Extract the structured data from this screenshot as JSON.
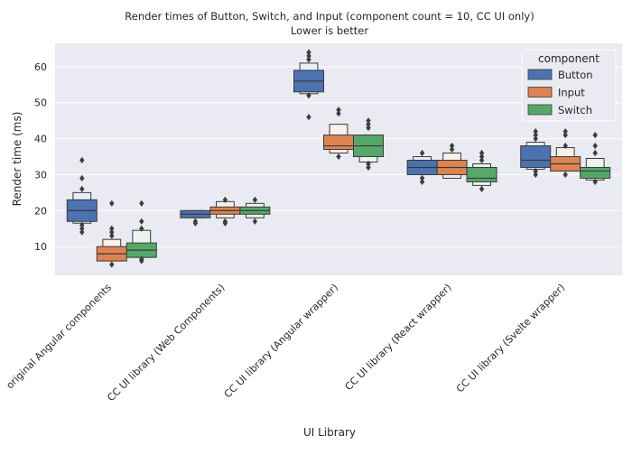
{
  "chart_data": {
    "type": "boxen",
    "title_line1": "Render times of Button, Switch, and Input (component count = 10, CC UI only)",
    "title_line2": "Lower is better",
    "xlabel": "UI Library",
    "ylabel": "Render time (ms)",
    "ylim": [
      2,
      66.5
    ],
    "yticks": [
      10,
      20,
      30,
      40,
      50,
      60
    ],
    "grid": true,
    "legend_position": "top-right",
    "legend_title": "component",
    "categories": [
      "original Angular components",
      "CC UI library (Web Components)",
      "CC UI library (Angular wrapper)",
      "CC UI library (React wrapper)",
      "CC UI library (Svelte wrapper)"
    ],
    "series": [
      {
        "name": "Button",
        "color": "#4c72b0",
        "stats": [
          {
            "q1": 17,
            "median": 20,
            "q3": 23,
            "lo2": 16.5,
            "hi2": 25,
            "outliers": [
              14,
              15,
              16,
              26,
              29,
              34
            ]
          },
          {
            "q1": 18,
            "median": 19,
            "q3": 20,
            "lo2": 18,
            "hi2": 20,
            "outliers": [
              16.5,
              17
            ]
          },
          {
            "q1": 53,
            "median": 56,
            "q3": 59,
            "lo2": 52.5,
            "hi2": 61,
            "outliers": [
              46,
              52,
              62,
              63,
              64
            ]
          },
          {
            "q1": 30,
            "median": 32,
            "q3": 34,
            "lo2": 30,
            "hi2": 35,
            "outliers": [
              28,
              29,
              36
            ]
          },
          {
            "q1": 32,
            "median": 34,
            "q3": 38,
            "lo2": 31.5,
            "hi2": 39,
            "outliers": [
              30,
              31,
              40,
              41,
              42
            ]
          }
        ]
      },
      {
        "name": "Input",
        "color": "#dd8452",
        "stats": [
          {
            "q1": 6,
            "median": 8,
            "q3": 10,
            "lo2": 6,
            "hi2": 12,
            "outliers": [
              5,
              13,
              14,
              15,
              22
            ]
          },
          {
            "q1": 19,
            "median": 20,
            "q3": 21,
            "lo2": 18,
            "hi2": 22.5,
            "outliers": [
              16.5,
              17,
              23
            ]
          },
          {
            "q1": 37,
            "median": 38,
            "q3": 41,
            "lo2": 36,
            "hi2": 44,
            "outliers": [
              35,
              47,
              48
            ]
          },
          {
            "q1": 30,
            "median": 32,
            "q3": 34,
            "lo2": 29,
            "hi2": 36,
            "outliers": [
              37,
              38
            ]
          },
          {
            "q1": 31,
            "median": 33,
            "q3": 35,
            "lo2": 31,
            "hi2": 37.5,
            "outliers": [
              30,
              38,
              41,
              42
            ]
          }
        ]
      },
      {
        "name": "Switch",
        "color": "#55a868",
        "stats": [
          {
            "q1": 7,
            "median": 9,
            "q3": 11,
            "lo2": 7,
            "hi2": 14.5,
            "outliers": [
              6,
              6.5,
              15,
              17,
              22
            ]
          },
          {
            "q1": 19,
            "median": 20,
            "q3": 21,
            "lo2": 18,
            "hi2": 22,
            "outliers": [
              17,
              23
            ]
          },
          {
            "q1": 35,
            "median": 38,
            "q3": 41,
            "lo2": 33.5,
            "hi2": 41,
            "outliers": [
              32,
              33,
              43,
              44,
              45
            ]
          },
          {
            "q1": 28,
            "median": 29,
            "q3": 32,
            "lo2": 27,
            "hi2": 33,
            "outliers": [
              26,
              34,
              35,
              36
            ]
          },
          {
            "q1": 29,
            "median": 31,
            "q3": 32,
            "lo2": 28.5,
            "hi2": 34.5,
            "outliers": [
              28,
              36,
              38,
              41
            ]
          }
        ]
      }
    ]
  }
}
